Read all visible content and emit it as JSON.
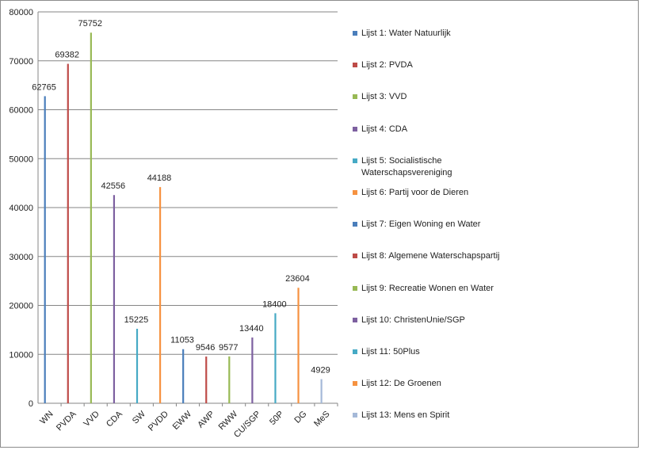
{
  "chart_data": {
    "type": "bar",
    "categories": [
      "WN",
      "PVDA",
      "VVD",
      "CDA",
      "SW",
      "PVDD",
      "EWW",
      "AWP",
      "RWW",
      "CU/SGP",
      "50P",
      "DG",
      "MeS"
    ],
    "values": [
      62765,
      69382,
      75752,
      42556,
      15225,
      44188,
      11053,
      9546,
      9577,
      13440,
      18400,
      23604,
      4929
    ],
    "data_labels": [
      "62765",
      "69382",
      "75752",
      "42556",
      "15225",
      "44188",
      "11053",
      "9546",
      "9577",
      "13440",
      "18400",
      "23604",
      "4929"
    ],
    "series": [
      {
        "name": "Lijst 1: Water Natuurlijk",
        "color": "#4a7ebb"
      },
      {
        "name": "Lijst 2: PVDA",
        "color": "#be4b48"
      },
      {
        "name": "Lijst 3: VVD",
        "color": "#98b954"
      },
      {
        "name": "Lijst 4: CDA",
        "color": "#7d60a0"
      },
      {
        "name": "Lijst 5: Socialistische Waterschapsvereniging",
        "color": "#46aac5"
      },
      {
        "name": "Lijst 6: Partij voor de Dieren",
        "color": "#f69240"
      },
      {
        "name": "Lijst 7: Eigen Woning en Water",
        "color": "#4a7ebb"
      },
      {
        "name": "Lijst 8: Algemene Waterschapspartij",
        "color": "#be4b48"
      },
      {
        "name": "Lijst 9: Recreatie Wonen en Water",
        "color": "#98b954"
      },
      {
        "name": "Lijst 10: ChristenUnie/SGP",
        "color": "#7d60a0"
      },
      {
        "name": "Lijst 11: 50Plus",
        "color": "#46aac5"
      },
      {
        "name": "Lijst 12: De Groenen",
        "color": "#f69240"
      },
      {
        "name": "Lijst 13: Mens en Spirit",
        "color": "#a5b9d8"
      }
    ],
    "bar_colors": [
      "#4a7ebb",
      "#be4b48",
      "#98b954",
      "#7d60a0",
      "#46aac5",
      "#f69240",
      "#4a7ebb",
      "#be4b48",
      "#98b954",
      "#7d60a0",
      "#46aac5",
      "#f69240",
      "#a5b9d8"
    ],
    "y_ticks": [
      "0",
      "10000",
      "20000",
      "30000",
      "40000",
      "50000",
      "60000",
      "70000",
      "80000"
    ],
    "ylim": [
      0,
      80000
    ],
    "grid": true,
    "legend_position": "right",
    "title": "",
    "xlabel": "",
    "ylabel": ""
  }
}
